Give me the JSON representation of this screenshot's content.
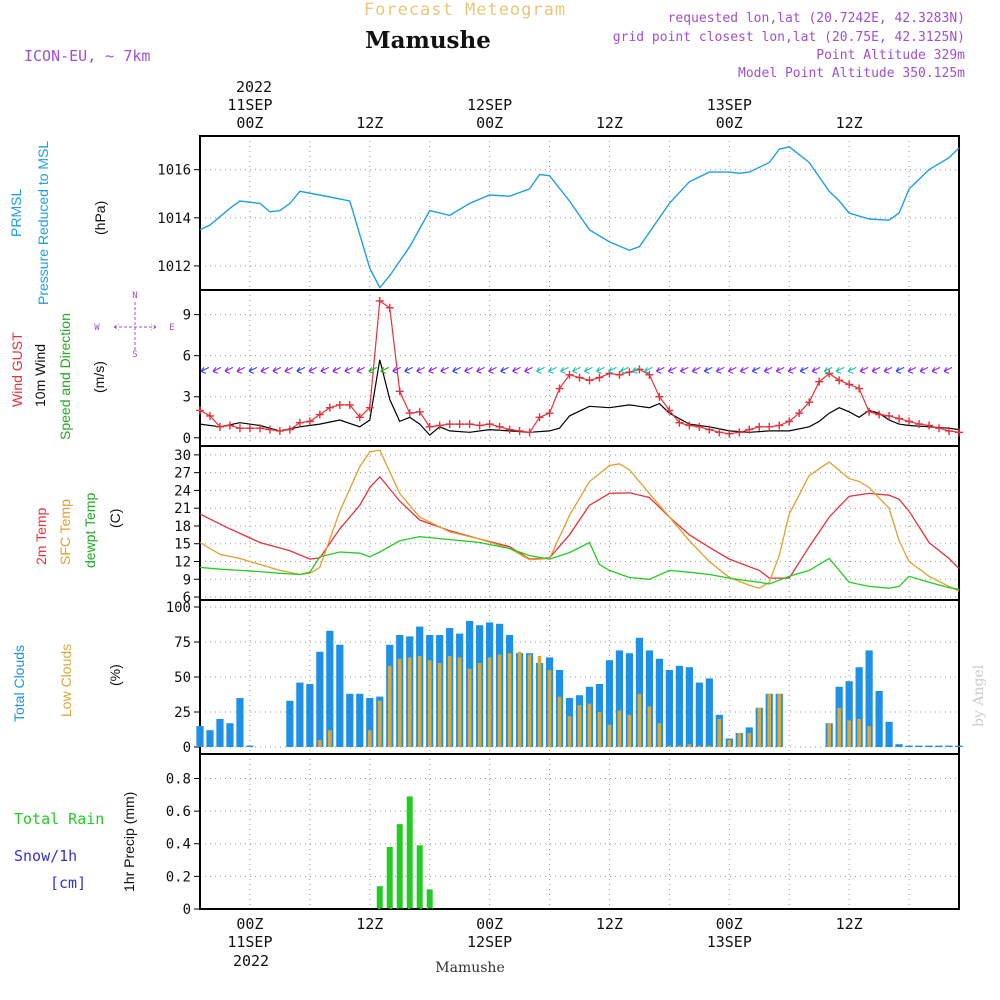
{
  "header": {
    "product": "Forecast Meteogram",
    "location": "Mamushe",
    "model": "ICON-EU, ~ 7km",
    "requested": "requested lon,lat (20.7242E, 42.3283N)",
    "grid": "grid point closest lon,lat (20.75E, 42.3125N)",
    "point_altitude": "Point Altitude 329m",
    "model_altitude": "Model Point Altitude 350.125m",
    "footer_location": "Mamushe",
    "watermark": "by Angel"
  },
  "time_axis": {
    "top_year": "2022",
    "ticks": [
      {
        "t": 0,
        "label": "00Z",
        "date": "11SEP"
      },
      {
        "t": 12,
        "label": "12Z",
        "date": ""
      },
      {
        "t": 24,
        "label": "00Z",
        "date": "12SEP"
      },
      {
        "t": 36,
        "label": "12Z",
        "date": ""
      },
      {
        "t": 48,
        "label": "00Z",
        "date": "13SEP"
      },
      {
        "t": 60,
        "label": "12Z",
        "date": ""
      }
    ],
    "bottom_year": "2022",
    "range_hours": [
      -5,
      71
    ]
  },
  "colors": {
    "pressure": "#1ea0e6",
    "gust": "#e8313a",
    "wind": "#000000",
    "green": "#22cc22",
    "temp2m": "#e8313a",
    "sfc": "#e0a030",
    "dew": "#22cc22",
    "total_clouds": "#1e90e6",
    "low_clouds": "#d8a840",
    "rain": "#22cc22",
    "snow": "#3333dd",
    "purple": "#a050d0",
    "title_yellow": "#e6c878"
  },
  "panels": {
    "pressure": {
      "label1": "PRMSL",
      "label2": "Pressure Reduced to MSL",
      "unit": "(hPa)"
    },
    "wind": {
      "label_gust": "Wind GUST",
      "label_wind1": "10m Wind",
      "label_dir1": "Speed and Direction",
      "unit": "(m/s)",
      "compass_n": "N",
      "compass_s": "S",
      "compass_w": "W",
      "compass_e": "E"
    },
    "temp": {
      "label_2m": "2m Temp",
      "label_sfc": "SFC Temp",
      "label_dew": "dewpt Temp",
      "unit": "(C)"
    },
    "clouds": {
      "label_total": "Total Clouds",
      "label_low": "Low Clouds",
      "unit": "(%)"
    },
    "precip": {
      "label_rain": "Total  Rain",
      "label_snow": "Snow/1h",
      "label_cm": "[cm]",
      "label_axis": "1hr Precip (mm)"
    }
  },
  "chart_data": [
    {
      "type": "line",
      "title": "PRMSL",
      "ylabel": "(hPa)",
      "ylim": [
        1011,
        1017.4
      ],
      "yticks": [
        1012,
        1014,
        1016
      ],
      "series": [
        {
          "name": "PRMSL",
          "x": [
            -5,
            -4,
            -2,
            -1,
            1,
            2,
            3,
            4,
            5,
            7,
            10,
            11,
            12,
            13,
            14,
            16,
            18,
            20,
            22,
            24,
            26,
            28,
            29,
            30,
            32,
            34,
            36,
            38,
            39,
            40,
            42,
            44,
            46,
            48,
            49,
            50,
            52,
            53,
            54,
            56,
            58,
            59,
            60,
            62,
            64,
            65,
            66,
            68,
            70,
            71
          ],
          "values": [
            1013.5,
            1013.7,
            1014.4,
            1014.7,
            1014.6,
            1014.25,
            1014.3,
            1014.6,
            1015.1,
            1014.95,
            1014.7,
            1013.3,
            1011.9,
            1011.1,
            1011.6,
            1012.8,
            1014.3,
            1014.1,
            1014.6,
            1014.95,
            1014.9,
            1015.2,
            1015.8,
            1015.75,
            1014.7,
            1013.5,
            1013.0,
            1012.65,
            1012.8,
            1013.4,
            1014.6,
            1015.5,
            1015.9,
            1015.9,
            1015.85,
            1015.9,
            1016.3,
            1016.85,
            1016.95,
            1016.3,
            1015.1,
            1014.7,
            1014.2,
            1013.95,
            1013.9,
            1014.2,
            1015.2,
            1016.0,
            1016.5,
            1016.9
          ]
        }
      ]
    },
    {
      "type": "line",
      "title": "Wind GUST / 10m Wind Speed and Direction",
      "ylabel": "(m/s)",
      "ylim": [
        -0.6,
        10.8
      ],
      "yticks": [
        0,
        3,
        6,
        9
      ],
      "series": [
        {
          "name": "Wind GUST",
          "x": [
            -5,
            -4,
            -3,
            -2,
            -1,
            0,
            1,
            2,
            3,
            4,
            5,
            6,
            7,
            8,
            9,
            10,
            11,
            12,
            13,
            14,
            15,
            16,
            17,
            18,
            19,
            20,
            21,
            22,
            23,
            24,
            25,
            26,
            27,
            28,
            29,
            30,
            31,
            32,
            33,
            34,
            35,
            36,
            37,
            38,
            39,
            40,
            41,
            42,
            43,
            44,
            45,
            46,
            47,
            48,
            49,
            50,
            51,
            52,
            53,
            54,
            55,
            56,
            57,
            58,
            59,
            60,
            61,
            62,
            63,
            64,
            65,
            66,
            67,
            68,
            69,
            70,
            71
          ],
          "values": [
            2.0,
            1.6,
            0.8,
            0.9,
            0.7,
            0.7,
            0.7,
            0.6,
            0.5,
            0.6,
            1.1,
            1.2,
            1.7,
            2.2,
            2.4,
            2.4,
            1.5,
            2.2,
            10.0,
            9.5,
            3.4,
            1.8,
            1.9,
            0.8,
            0.9,
            1.0,
            1.0,
            1.0,
            0.9,
            1.0,
            0.8,
            0.6,
            0.5,
            0.4,
            1.5,
            1.8,
            3.6,
            4.6,
            4.4,
            4.2,
            4.4,
            4.7,
            4.6,
            4.8,
            5.0,
            4.6,
            3.0,
            2.0,
            1.1,
            0.9,
            0.8,
            0.6,
            0.4,
            0.3,
            0.4,
            0.6,
            0.8,
            0.8,
            0.9,
            1.2,
            1.8,
            2.6,
            4.1,
            4.7,
            4.2,
            3.9,
            3.6,
            1.9,
            1.7,
            1.6,
            1.4,
            1.2,
            1.0,
            0.9,
            0.7,
            0.5,
            0.4
          ]
        },
        {
          "name": "10m Wind",
          "x": [
            -5,
            -3,
            -1,
            1,
            3,
            5,
            7,
            9,
            11,
            12,
            13,
            14,
            15,
            16,
            17,
            18,
            19,
            20,
            22,
            24,
            26,
            28,
            30,
            31,
            32,
            34,
            36,
            38,
            40,
            41,
            42,
            44,
            46,
            48,
            50,
            52,
            54,
            56,
            57,
            58,
            59,
            60,
            61,
            62,
            63,
            64,
            65,
            66,
            68,
            70,
            71
          ],
          "values": [
            1.0,
            0.8,
            1.1,
            0.9,
            0.5,
            0.8,
            1.0,
            1.3,
            0.8,
            1.3,
            5.7,
            2.8,
            1.2,
            1.5,
            1.0,
            0.2,
            0.8,
            0.5,
            0.4,
            0.6,
            0.5,
            0.4,
            0.5,
            0.7,
            1.6,
            2.3,
            2.2,
            2.4,
            2.2,
            2.5,
            1.8,
            1.0,
            0.8,
            0.5,
            0.4,
            0.5,
            0.5,
            0.8,
            1.2,
            1.8,
            2.2,
            1.9,
            1.5,
            2.0,
            1.8,
            1.3,
            1.0,
            0.9,
            0.8,
            0.7,
            0.6
          ]
        }
      ]
    },
    {
      "type": "line",
      "title": "2m Temp / SFC Temp / dewpt Temp",
      "ylabel": "(C)",
      "ylim": [
        5.5,
        31.5
      ],
      "yticks": [
        6,
        9,
        12,
        15,
        18,
        21,
        24,
        27,
        30
      ],
      "series": [
        {
          "name": "2m Temp",
          "x": [
            -5,
            -2,
            1,
            4,
            6,
            7,
            9,
            11,
            12,
            13,
            15,
            17,
            20,
            23,
            26,
            28,
            30,
            32,
            34,
            36,
            38,
            40,
            42,
            44,
            46,
            48,
            51,
            52,
            54,
            56,
            58,
            60,
            62,
            64,
            65,
            66,
            68,
            70,
            71
          ],
          "values": [
            20,
            17.5,
            15.2,
            13.8,
            12.4,
            12.6,
            17.5,
            21.5,
            24.5,
            26.3,
            22.2,
            19,
            17.2,
            15.8,
            14.5,
            12.4,
            12.6,
            16.5,
            21.5,
            23.5,
            23.6,
            22.8,
            19.5,
            16.5,
            14.4,
            12.4,
            10.5,
            9.2,
            9.2,
            14.5,
            19.5,
            23.0,
            23.5,
            23.2,
            22.5,
            20.5,
            15.2,
            12.5,
            10.8
          ]
        },
        {
          "name": "SFC Temp",
          "x": [
            -5,
            -3,
            -1,
            1,
            3,
            5,
            6,
            7,
            9,
            11,
            12,
            13,
            15,
            17,
            20,
            23,
            26,
            28,
            30,
            32,
            34,
            36,
            37,
            38,
            40,
            42,
            44,
            46,
            48,
            50,
            51,
            52,
            53,
            54,
            56,
            58,
            60,
            61,
            62,
            64,
            65,
            66,
            68,
            70,
            71
          ],
          "values": [
            15.2,
            13.2,
            12.5,
            11.5,
            10.5,
            9.8,
            10,
            11,
            20.5,
            28,
            30.5,
            30.8,
            23.5,
            19.5,
            17,
            15.8,
            14.2,
            12.3,
            12.5,
            19.8,
            25.5,
            28.2,
            28.5,
            27.5,
            23.5,
            19.5,
            15.5,
            12.0,
            9.3,
            8.0,
            7.5,
            8.5,
            13,
            20.0,
            26.5,
            28.8,
            26.0,
            25.5,
            24.5,
            21.0,
            15.5,
            12.0,
            9.5,
            7.8,
            7.0
          ]
        },
        {
          "name": "dewpt Temp",
          "x": [
            -5,
            -3,
            -1,
            1,
            3,
            5,
            6,
            7,
            9,
            11,
            12,
            13,
            15,
            17,
            20,
            23,
            26,
            28,
            30,
            32,
            34,
            35,
            36,
            38,
            40,
            42,
            44,
            46,
            48,
            50,
            51,
            52,
            54,
            56,
            58,
            60,
            62,
            64,
            65,
            66,
            68,
            70,
            71
          ],
          "values": [
            11.0,
            10.7,
            10.5,
            10.3,
            10.0,
            9.8,
            10.2,
            12.8,
            13.6,
            13.4,
            12.8,
            13.6,
            15.5,
            16.2,
            15.7,
            15.2,
            14.2,
            13.0,
            12.4,
            13.5,
            15.2,
            11.5,
            10.5,
            9.3,
            9.0,
            10.5,
            10.2,
            9.8,
            9.2,
            8.7,
            8.5,
            8.2,
            9.5,
            10.5,
            12.5,
            8.5,
            7.8,
            7.5,
            7.8,
            9.5,
            8.5,
            7.6,
            7.3
          ]
        }
      ]
    },
    {
      "type": "bar",
      "title": "Total Clouds / Low Clouds",
      "ylabel": "(%)",
      "ylim": [
        -5,
        105
      ],
      "yticks": [
        0,
        25,
        50,
        75,
        100
      ],
      "x": [
        -5,
        -4,
        -3,
        -2,
        -1,
        0,
        1,
        2,
        3,
        4,
        5,
        6,
        7,
        8,
        9,
        10,
        11,
        12,
        13,
        14,
        15,
        16,
        17,
        18,
        19,
        20,
        21,
        22,
        23,
        24,
        25,
        26,
        27,
        28,
        29,
        30,
        31,
        32,
        33,
        34,
        35,
        36,
        37,
        38,
        39,
        40,
        41,
        42,
        43,
        44,
        45,
        46,
        47,
        48,
        49,
        50,
        51,
        52,
        53,
        54,
        55,
        56,
        57,
        58,
        59,
        60,
        61,
        62,
        63,
        64,
        65,
        66,
        67,
        68,
        69,
        70,
        71
      ],
      "series": [
        {
          "name": "Total Clouds",
          "values": [
            15,
            12,
            20,
            17,
            35,
            1,
            0,
            0,
            0,
            33,
            46,
            45,
            68,
            83,
            73,
            38,
            38,
            35,
            36,
            73,
            80,
            79,
            86,
            80,
            80,
            85,
            81,
            90,
            87,
            89,
            88,
            80,
            67,
            67,
            60,
            64,
            55,
            35,
            37,
            43,
            45,
            62,
            69,
            67,
            78,
            69,
            63,
            55,
            58,
            57,
            46,
            49,
            23,
            6,
            10,
            14,
            28,
            38,
            38,
            0,
            0,
            0,
            0,
            17,
            43,
            47,
            57,
            69,
            40,
            18,
            2,
            1,
            1,
            1,
            1,
            1,
            1
          ]
        },
        {
          "name": "Low Clouds",
          "values": [
            0,
            0,
            0,
            0,
            0,
            0,
            0,
            0,
            0,
            0,
            0,
            0,
            5,
            12,
            0,
            0,
            0,
            12,
            33,
            58,
            63,
            64,
            65,
            62,
            60,
            65,
            64,
            56,
            60,
            64,
            66,
            67,
            68,
            66,
            65,
            55,
            36,
            22,
            30,
            31,
            25,
            16,
            26,
            23,
            38,
            29,
            17,
            1,
            1,
            2,
            1,
            1,
            20,
            5,
            10,
            10,
            28,
            38,
            38,
            0,
            0,
            0,
            0,
            17,
            28,
            19,
            20,
            15,
            0,
            0,
            0,
            0,
            0,
            0,
            0,
            0,
            0
          ]
        }
      ]
    },
    {
      "type": "bar",
      "title": "1hr Precip",
      "ylabel": "1hr Precip (mm)",
      "ylim": [
        0,
        0.95
      ],
      "yticks": [
        0,
        0.2,
        0.4,
        0.6,
        0.8
      ],
      "x": [
        13,
        14,
        15,
        16,
        17,
        18
      ],
      "series": [
        {
          "name": "Total Rain",
          "values": [
            0.14,
            0.38,
            0.52,
            0.69,
            0.39,
            0.12
          ]
        }
      ]
    }
  ]
}
